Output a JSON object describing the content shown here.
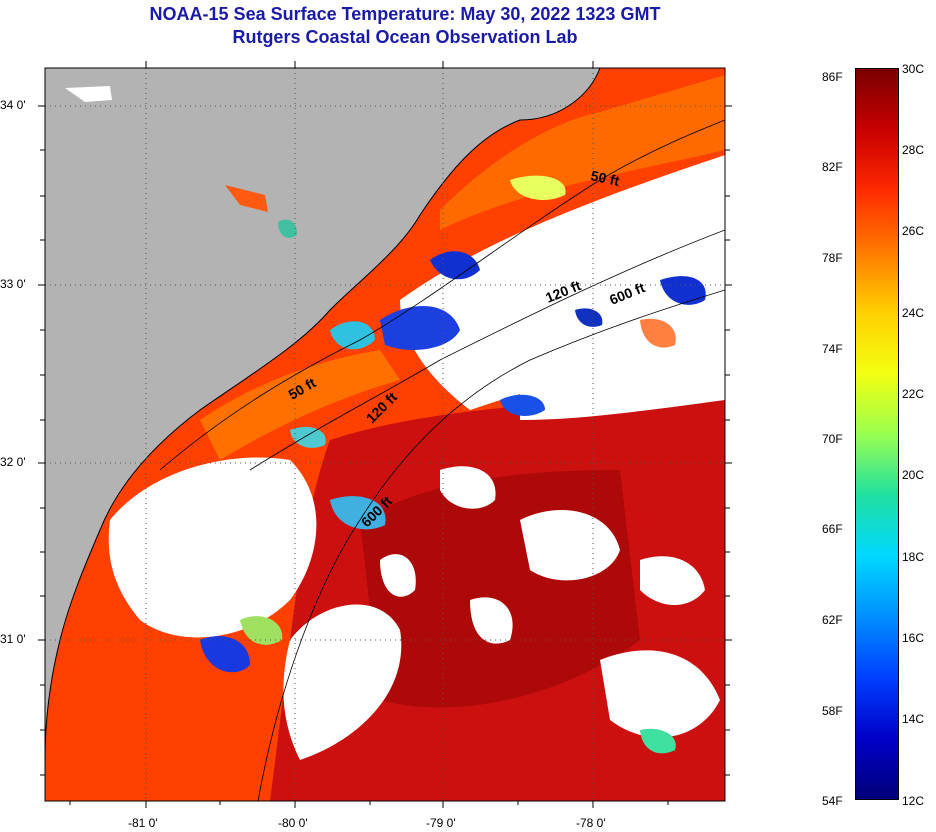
{
  "header": {
    "title": "NOAA-15 Sea Surface Temperature:  May 30, 2022 1323 GMT",
    "subtitle": "Rutgers Coastal Ocean Observation Lab"
  },
  "map": {
    "lat_ticks": [
      "34 0'",
      "33 0'",
      "32 0'",
      "31 0'"
    ],
    "lon_ticks": [
      "-81 0'",
      "-80 0'",
      "-79 0'",
      "-78 0'"
    ],
    "isobaths": [
      "50 ft",
      "120 ft",
      "600 ft",
      "50 ft",
      "120 ft",
      "600 ft"
    ]
  },
  "colorbar": {
    "fahrenheit": [
      "86F",
      "82F",
      "78F",
      "74F",
      "70F",
      "66F",
      "62F",
      "58F",
      "54F"
    ],
    "celsius": [
      "30C",
      "28C",
      "26C",
      "24C",
      "22C",
      "20C",
      "18C",
      "16C",
      "14C",
      "12C"
    ],
    "colors": [
      "#7a0000",
      "#c80000",
      "#ff2a00",
      "#ff7a00",
      "#ffd000",
      "#f4ff10",
      "#9aff50",
      "#20e0a0",
      "#00d8ff",
      "#0090ff",
      "#0040ff",
      "#0000c8",
      "#00007a"
    ]
  }
}
